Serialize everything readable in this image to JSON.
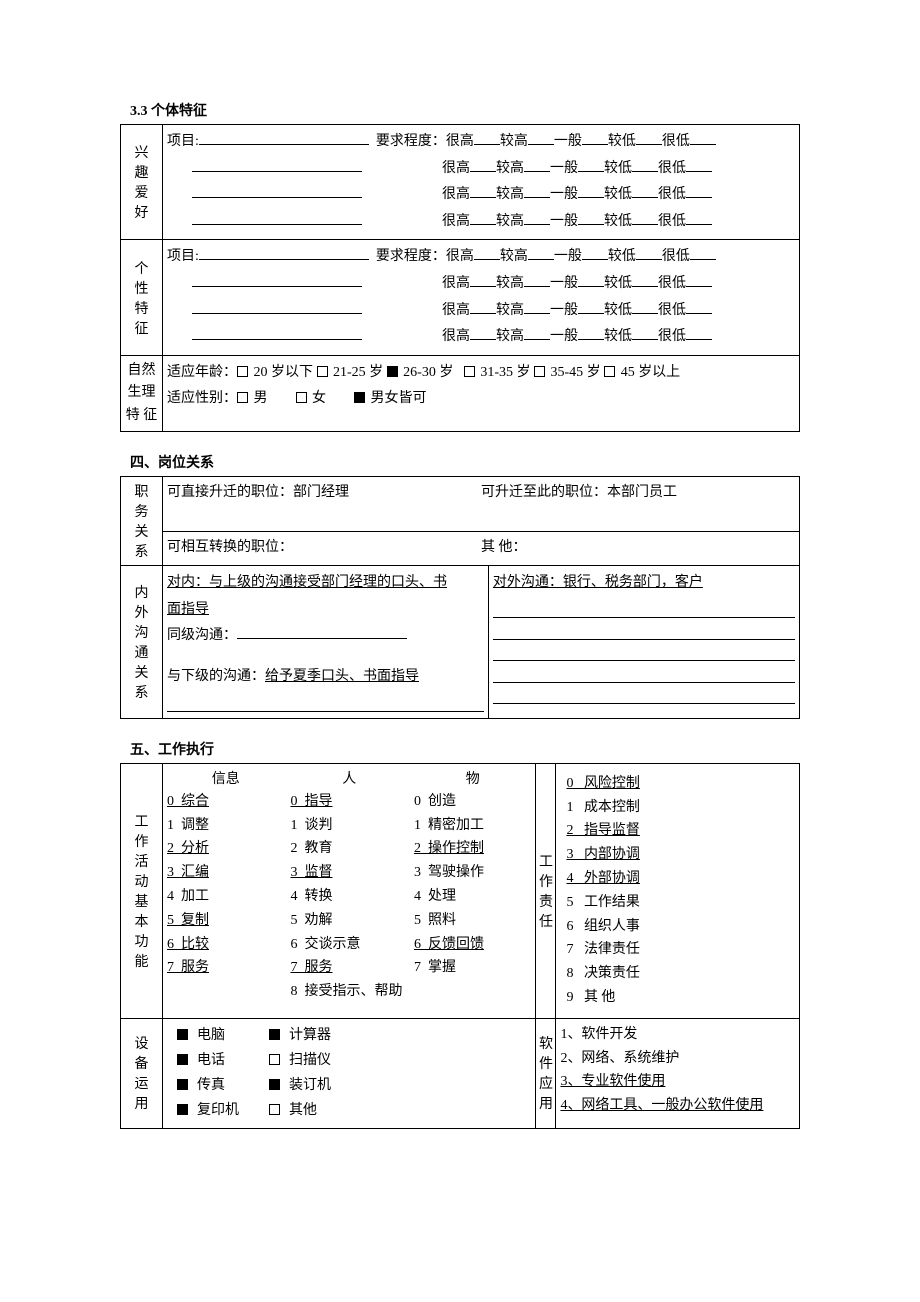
{
  "sec33": {
    "title": "3.3  个体特征",
    "interest_label": "兴趣爱好",
    "personality_label": "个性特征",
    "item_label": "项目:",
    "degree_label": "要求程度：",
    "ratings": [
      "很高",
      "较高",
      "一般",
      "较低",
      "很低"
    ],
    "physio": {
      "label": "自然生理特    征",
      "age_label": "适应年龄：",
      "ages": [
        {
          "label": "20 岁以下",
          "checked": false
        },
        {
          "label": "21-25 岁",
          "checked": false
        },
        {
          "label": "26-30 岁",
          "checked": true
        },
        {
          "label": "31-35 岁",
          "checked": false
        },
        {
          "label": "35-45 岁",
          "checked": false
        },
        {
          "label": "45 岁以上",
          "checked": false
        }
      ],
      "gender_label": "适应性别：",
      "genders": [
        {
          "label": "男",
          "checked": false
        },
        {
          "label": "女",
          "checked": false
        },
        {
          "label": "男女皆可",
          "checked": true
        }
      ]
    }
  },
  "sec4": {
    "title": "四、岗位关系",
    "position_rel_label": "职务关系",
    "promote_to": "可直接升迁的职位：部门经理",
    "promote_from": "可升迁至此的职位：本部门员工",
    "interchange": "可相互转换的职位：",
    "other": "其    他：",
    "comm_label": "内外沟通关系",
    "internal_upper": "对内：与上级的沟通接受部门经理的口头、书面指导",
    "internal_peer": "同级沟通：",
    "internal_lower": "与下级的沟通：给予夏季口头、书面指导",
    "external": "对外沟通：银行、税务部门，客户"
  },
  "sec5": {
    "title": "五、工作执行",
    "func_label": "工作活动基本功能",
    "func_headers": [
      "信息",
      "人",
      "物"
    ],
    "func_info": [
      {
        "n": "0",
        "t": "综合",
        "u": true
      },
      {
        "n": "1",
        "t": "调整",
        "u": false
      },
      {
        "n": "2",
        "t": "分析",
        "u": true
      },
      {
        "n": "3",
        "t": "汇编",
        "u": true
      },
      {
        "n": "4",
        "t": "加工",
        "u": false
      },
      {
        "n": "5",
        "t": "复制",
        "u": true
      },
      {
        "n": "6",
        "t": "比较",
        "u": true
      },
      {
        "n": "7",
        "t": "服务",
        "u": true
      }
    ],
    "func_people": [
      {
        "n": "0",
        "t": "指导",
        "u": true
      },
      {
        "n": "1",
        "t": "谈判",
        "u": false
      },
      {
        "n": "2",
        "t": "教育",
        "u": false
      },
      {
        "n": "3",
        "t": "监督",
        "u": true
      },
      {
        "n": "4",
        "t": "转换",
        "u": false
      },
      {
        "n": "5",
        "t": "劝解",
        "u": false
      },
      {
        "n": "6",
        "t": "交谈示意",
        "u": false
      },
      {
        "n": "7",
        "t": "服务",
        "u": true
      },
      {
        "n": "8",
        "t": "接受指示、帮助",
        "u": false
      }
    ],
    "func_thing": [
      {
        "n": "0",
        "t": "创造",
        "u": false
      },
      {
        "n": "1",
        "t": "精密加工",
        "u": false
      },
      {
        "n": "2",
        "t": "操作控制",
        "u": true
      },
      {
        "n": "3",
        "t": "驾驶操作",
        "u": false
      },
      {
        "n": "4",
        "t": "处理",
        "u": false
      },
      {
        "n": "5",
        "t": "照料",
        "u": false
      },
      {
        "n": "6",
        "t": "反馈回馈",
        "u": true
      },
      {
        "n": "7",
        "t": "掌握",
        "u": false
      }
    ],
    "resp_label": "工作责任",
    "resp_items": [
      {
        "n": "0",
        "t": "风险控制",
        "u": true
      },
      {
        "n": "1",
        "t": "成本控制",
        "u": false
      },
      {
        "n": "2",
        "t": "指导监督",
        "u": true
      },
      {
        "n": "3",
        "t": "内部协调",
        "u": true
      },
      {
        "n": "4",
        "t": "外部协调",
        "u": true
      },
      {
        "n": "5",
        "t": "工作结果",
        "u": false
      },
      {
        "n": "6",
        "t": "组织人事",
        "u": false
      },
      {
        "n": "7",
        "t": "法律责任",
        "u": false
      },
      {
        "n": "8",
        "t": "决策责任",
        "u": false
      },
      {
        "n": "9",
        "t": "其    他",
        "u": false
      }
    ],
    "equip_label": "设备运用",
    "equip_items": [
      {
        "label": "电脑",
        "checked": true
      },
      {
        "label": "计算器",
        "checked": true
      },
      {
        "label": "电话",
        "checked": true
      },
      {
        "label": "扫描仪",
        "checked": false
      },
      {
        "label": "传真",
        "checked": true
      },
      {
        "label": "装订机",
        "checked": true
      },
      {
        "label": "复印机",
        "checked": true
      },
      {
        "label": "其他",
        "checked": false
      }
    ],
    "soft_label": "软件应用",
    "soft_items": [
      {
        "n": "1、",
        "t": "软件开发",
        "u": false
      },
      {
        "n": "2、",
        "t": "网络、系统维护",
        "u": false
      },
      {
        "n": "3、",
        "t": "专业软件使用",
        "u": true
      },
      {
        "n": "4、",
        "t": "网络工具、一般办公软件使用",
        "u": true
      }
    ]
  }
}
